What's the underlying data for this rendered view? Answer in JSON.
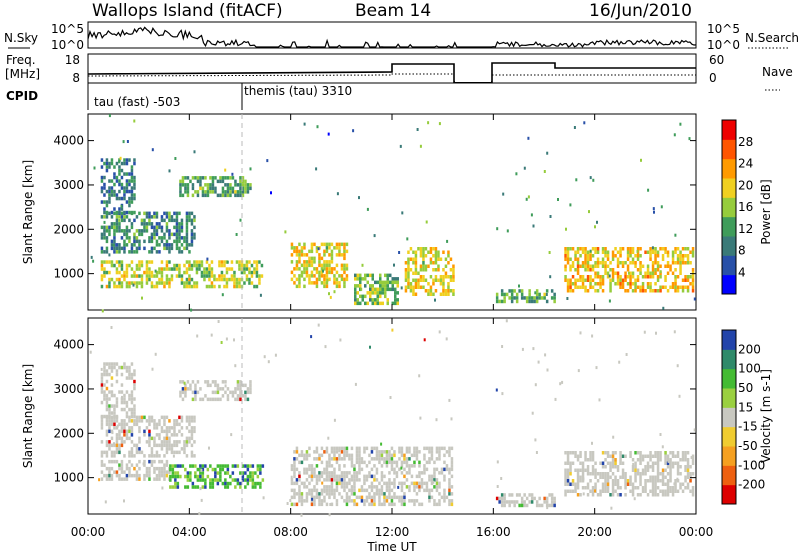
{
  "header": {
    "title": "Wallops Island (fitACF)",
    "beam": "Beam 14",
    "date": "16/Jun/2010"
  },
  "top_panels": {
    "nsky_label": "N.Sky",
    "nsky_ticks": [
      "10^5",
      "10^0"
    ],
    "nsearch_label": "N.Search",
    "freq_label_line1": "Freq.",
    "freq_label_line2": "[MHz]",
    "freq_ticks": [
      "18",
      "8"
    ],
    "nave_label": "Nave",
    "nave_ticks": [
      "60",
      "0"
    ],
    "cpid_label": "CPID",
    "cpid_segments": [
      "tau (fast) -503",
      "themis (tau) 3310"
    ]
  },
  "colors": {
    "power_scale": [
      "#0000ff",
      "#2850a8",
      "#3a7a78",
      "#3f9c5a",
      "#96cc3c",
      "#f0d020",
      "#ff9a00",
      "#ff5500",
      "#ee0000"
    ],
    "velocity_scale": [
      "#2244aa",
      "#2f8a6a",
      "#44bb33",
      "#9ad040",
      "#c8c8c0",
      "#f0cc30",
      "#f5a020",
      "#ee6010",
      "#dd0000"
    ],
    "ground_scatter": "#c8c8c0"
  },
  "chart_data": [
    {
      "type": "heatmap",
      "name": "power",
      "ylabel": "Slant Range [km]",
      "colorbar_label": "Power [dB]",
      "colorbar_ticks": [
        "28",
        "24",
        "20",
        "16",
        "12",
        "8",
        "4"
      ],
      "ylim": [
        180,
        4600
      ],
      "yticks": [
        "4000",
        "3000",
        "2000",
        "1000"
      ],
      "xlim": [
        "00:00",
        "24:00"
      ],
      "data_gap": [
        "14:30",
        "16:00"
      ],
      "bands": [
        {
          "start": 0.5,
          "end": 6.9,
          "r_min": 700,
          "r_max": 1300,
          "level": 16
        },
        {
          "start": 0.5,
          "end": 4.2,
          "r_min": 1500,
          "r_max": 2400,
          "level": 9
        },
        {
          "start": 0.5,
          "end": 1.8,
          "r_min": 2400,
          "r_max": 3600,
          "level": 7
        },
        {
          "start": 3.6,
          "end": 6.4,
          "r_min": 2800,
          "r_max": 3200,
          "level": 12
        },
        {
          "start": 8.0,
          "end": 10.2,
          "r_min": 700,
          "r_max": 1700,
          "level": 18
        },
        {
          "start": 10.5,
          "end": 12.2,
          "r_min": 300,
          "r_max": 1000,
          "level": 14
        },
        {
          "start": 12.5,
          "end": 14.4,
          "r_min": 500,
          "r_max": 1600,
          "level": 18
        },
        {
          "start": 16.1,
          "end": 18.4,
          "r_min": 400,
          "r_max": 650,
          "level": 12
        },
        {
          "start": 18.8,
          "end": 23.9,
          "r_min": 600,
          "r_max": 1600,
          "level": 20
        }
      ]
    },
    {
      "type": "heatmap",
      "name": "velocity",
      "ylabel": "Slant Range [km]",
      "colorbar_label": "Velocity [m s-1]",
      "colorbar_ticks": [
        "200",
        "100",
        "50",
        "15",
        "-15",
        "-50",
        "-100",
        "-200"
      ],
      "ylim": [
        180,
        4600
      ],
      "yticks": [
        "4000",
        "3000",
        "2000",
        "1000"
      ],
      "xlim": [
        "00:00",
        "24:00"
      ],
      "xticks": [
        "00:00",
        "04:00",
        "08:00",
        "12:00",
        "16:00",
        "20:00",
        "00:00"
      ],
      "xlabel": "Time UT",
      "data_gap": [
        "14:30",
        "16:00"
      ],
      "bands": [
        {
          "start": 0.5,
          "end": 3.2,
          "r_min": 1000,
          "r_max": 1400,
          "v": 0
        },
        {
          "start": 3.2,
          "end": 6.9,
          "r_min": 800,
          "r_max": 1300,
          "v": 60
        },
        {
          "start": 0.5,
          "end": 4.2,
          "r_min": 1500,
          "r_max": 2400,
          "v": 0
        },
        {
          "start": 0.5,
          "end": 1.8,
          "r_min": 2400,
          "r_max": 3600,
          "v": 0
        },
        {
          "start": 3.6,
          "end": 6.4,
          "r_min": 2800,
          "r_max": 3200,
          "v": 0
        },
        {
          "start": 8.0,
          "end": 14.4,
          "r_min": 400,
          "r_max": 1700,
          "v": 0
        },
        {
          "start": 16.1,
          "end": 18.4,
          "r_min": 400,
          "r_max": 650,
          "v": 0
        },
        {
          "start": 18.8,
          "end": 23.9,
          "r_min": 600,
          "r_max": 1600,
          "v": 0
        }
      ]
    }
  ]
}
